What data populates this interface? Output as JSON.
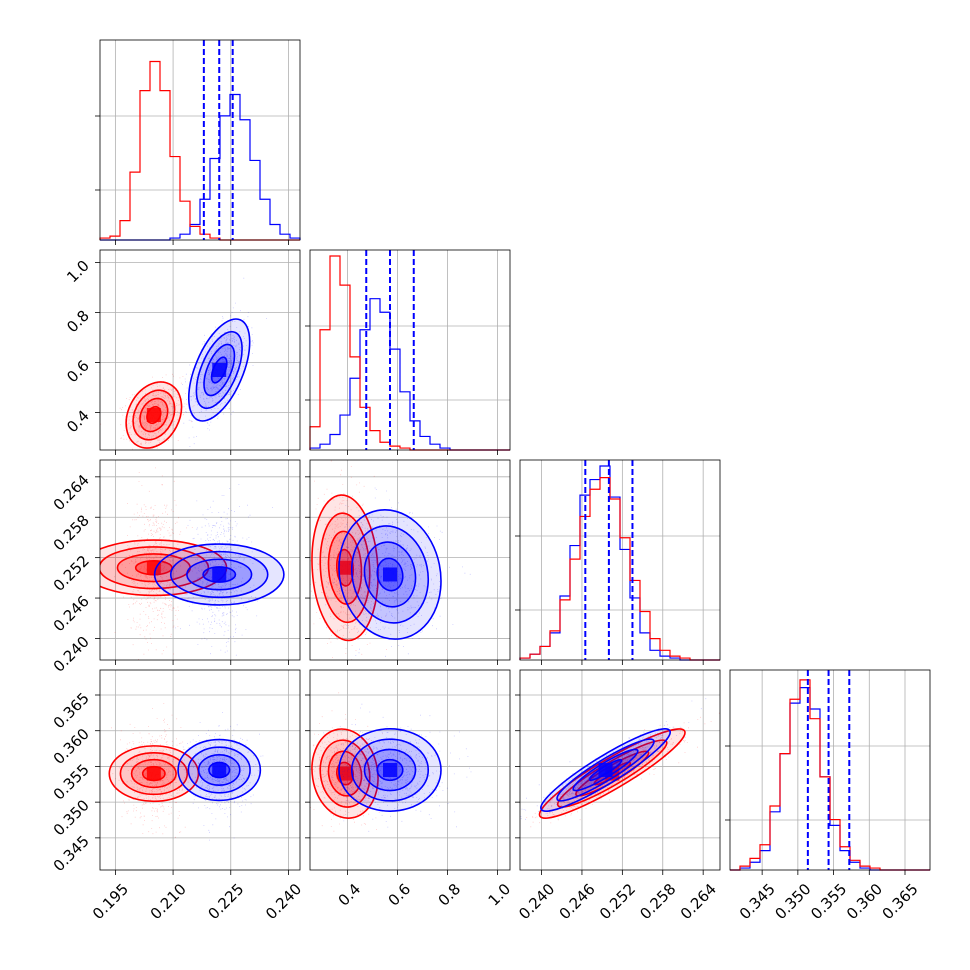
{
  "colors": {
    "red": "#ff0000",
    "blue": "#0000ff",
    "grid": "#b0b0b0"
  },
  "chart_data": {
    "type": "corner-plot",
    "components": [
      "histogram",
      "scatter-density",
      "contour"
    ],
    "grid": true,
    "series": [
      {
        "color": "#ff0000",
        "means": [
          0.205,
          0.39,
          0.2505,
          0.354
        ],
        "sigmas": [
          0.003,
          0.055,
          0.0045,
          0.0026
        ]
      },
      {
        "color": "#0000ff",
        "means": [
          0.222,
          0.57,
          0.2495,
          0.3545
        ],
        "sigmas": [
          0.0033,
          0.085,
          0.004,
          0.0024
        ],
        "quantile_lines": [
          [
            0.218,
            0.222,
            0.2255
          ],
          [
            0.475,
            0.57,
            0.665
          ],
          [
            0.2465,
            0.25,
            0.2535
          ],
          [
            0.3514,
            0.3543,
            0.3572
          ]
        ]
      }
    ],
    "correlations": [
      {
        "pair": [
          0,
          1
        ],
        "red": 0.25,
        "blue": 0.55
      },
      {
        "pair": [
          0,
          2
        ],
        "red": 0.0,
        "blue": 0.0
      },
      {
        "pair": [
          1,
          2
        ],
        "red": -0.1,
        "blue": -0.1
      },
      {
        "pair": [
          0,
          3
        ],
        "red": 0.0,
        "blue": 0.0
      },
      {
        "pair": [
          1,
          3
        ],
        "red": -0.1,
        "blue": 0.0
      },
      {
        "pair": [
          2,
          3
        ],
        "red": 0.92,
        "blue": 0.92
      }
    ],
    "parameters": [
      {
        "range": [
          0.191,
          0.243
        ],
        "ticks": [
          "0.195",
          "0.210",
          "0.225",
          "0.240"
        ],
        "hist": {
          "red": [
            0.01,
            0.02,
            0.1,
            0.35,
            0.77,
            0.92,
            0.77,
            0.43,
            0.2,
            0.07,
            0.03,
            0.01,
            0,
            0,
            0,
            0,
            0,
            0,
            0,
            0
          ],
          "blue": [
            0,
            0,
            0,
            0,
            0,
            0,
            0,
            0.01,
            0.03,
            0.08,
            0.21,
            0.42,
            0.64,
            0.75,
            0.62,
            0.41,
            0.21,
            0.08,
            0.03,
            0.01
          ]
        }
      },
      {
        "range": [
          0.25,
          1.05
        ],
        "ticks": [
          "0.4",
          "0.6",
          "0.8",
          "1.0"
        ],
        "hist": {
          "red": [
            0.12,
            0.62,
            1.0,
            0.85,
            0.48,
            0.22,
            0.1,
            0.04,
            0.02,
            0.01,
            0,
            0,
            0,
            0,
            0,
            0,
            0,
            0,
            0,
            0
          ],
          "blue": [
            0.01,
            0.03,
            0.08,
            0.18,
            0.37,
            0.62,
            0.78,
            0.71,
            0.52,
            0.3,
            0.15,
            0.07,
            0.03,
            0.01,
            0,
            0,
            0,
            0,
            0,
            0
          ]
        }
      },
      {
        "range": [
          0.2368,
          0.2665
        ],
        "ticks": [
          "0.240",
          "0.246",
          "0.252",
          "0.258",
          "0.264"
        ],
        "hist": {
          "red": [
            0.01,
            0.03,
            0.07,
            0.15,
            0.31,
            0.52,
            0.74,
            0.88,
            0.94,
            0.83,
            0.63,
            0.41,
            0.25,
            0.11,
            0.05,
            0.02,
            0.01,
            0,
            0,
            0
          ],
          "blue": [
            0.01,
            0.03,
            0.07,
            0.14,
            0.33,
            0.59,
            0.85,
            0.93,
            1.0,
            0.84,
            0.57,
            0.32,
            0.14,
            0.05,
            0.02,
            0.01,
            0,
            0,
            0,
            0
          ]
        }
      },
      {
        "range": [
          0.3405,
          0.3685
        ],
        "ticks": [
          "0.345",
          "0.350",
          "0.355",
          "0.360",
          "0.365"
        ],
        "hist": {
          "red": [
            0,
            0.02,
            0.06,
            0.13,
            0.33,
            0.6,
            0.88,
            0.98,
            0.78,
            0.48,
            0.26,
            0.12,
            0.05,
            0.02,
            0.01,
            0,
            0,
            0,
            0,
            0
          ],
          "blue": [
            0,
            0.01,
            0.04,
            0.1,
            0.3,
            0.6,
            0.86,
            0.94,
            0.83,
            0.48,
            0.23,
            0.1,
            0.04,
            0.01,
            0,
            0,
            0,
            0,
            0,
            0
          ]
        }
      }
    ]
  }
}
